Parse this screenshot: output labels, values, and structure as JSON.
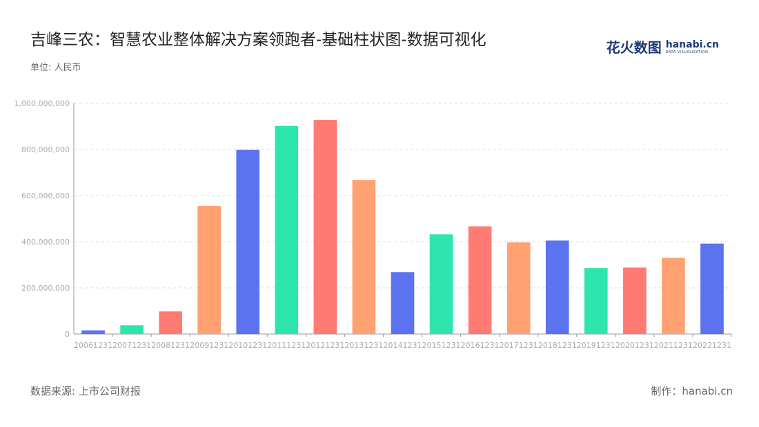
{
  "header": {
    "title": "吉峰三农：智慧农业整体解决方案领跑者-基础柱状图-数据可视化",
    "unit": "单位: 人民币"
  },
  "branding": {
    "logo_cn": "花火数图",
    "logo_en": "hanabi.cn",
    "logo_sub": "DATA VISUALIZATION"
  },
  "footer": {
    "source": "数据来源: 上市公司财报",
    "maker": "制作：hanabi.cn"
  },
  "colors": {
    "palette": [
      "#5b73ee",
      "#2ee5ae",
      "#ff7b73",
      "#ffa170"
    ],
    "grid": "#dddddd",
    "axis": "#999999",
    "tick_text": "#aaaaaa"
  },
  "chart_data": {
    "type": "bar",
    "categories": [
      "20061231",
      "20071231",
      "20081231",
      "20091231",
      "20101231",
      "20111231",
      "20121231",
      "20131231",
      "20141231",
      "20151231",
      "20161231",
      "20171231",
      "20181231",
      "20191231",
      "20201231",
      "20211231",
      "20221231"
    ],
    "values": [
      16000000,
      38000000,
      98000000,
      555000000,
      798000000,
      902000000,
      928000000,
      668000000,
      268000000,
      432000000,
      467000000,
      397000000,
      405000000,
      286000000,
      288000000,
      330000000,
      392000000
    ],
    "ylim": [
      0,
      1000000000
    ],
    "yticks": [
      0,
      200000000,
      400000000,
      600000000,
      800000000,
      1000000000
    ],
    "ytick_labels": [
      "0",
      "200,000,000",
      "400,000,000",
      "600,000,000",
      "800,000,000",
      "1,000,000,000"
    ],
    "grid": true,
    "color_cycle": [
      "#5b73ee",
      "#2ee5ae",
      "#ff7b73",
      "#ffa170"
    ]
  }
}
